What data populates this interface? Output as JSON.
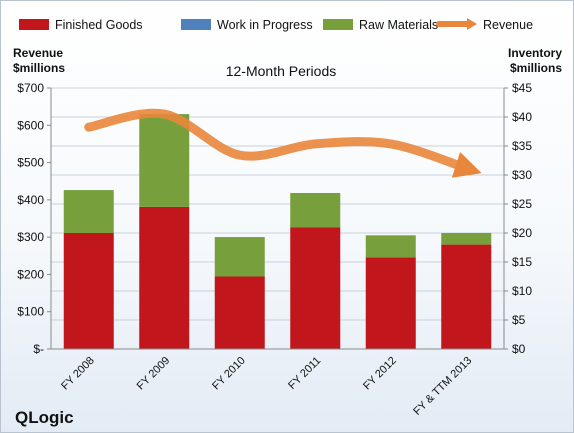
{
  "chart_data": {
    "type": "bar",
    "title": "12-Month Periods",
    "company": "QLogic",
    "left_axis_title": [
      "Revenue",
      "$millions"
    ],
    "right_axis_title": [
      "Inventory",
      "$millions"
    ],
    "categories": [
      "FY 2008",
      "FY 2009",
      "FY 2010",
      "FY 2011",
      "FY 2012",
      "FY & TTM 2013"
    ],
    "left_ticks": [
      "$-",
      "$100",
      "$200",
      "$300",
      "$400",
      "$500",
      "$600",
      "$700"
    ],
    "right_ticks": [
      "$0",
      "$5",
      "$10",
      "$15",
      "$20",
      "$25",
      "$30",
      "$35",
      "$40",
      "$45"
    ],
    "left_ylim": [
      0,
      700
    ],
    "right_ylim": [
      0,
      45
    ],
    "stacked": true,
    "legend_position": "top",
    "series": [
      {
        "name": "Finished Goods",
        "axis": "right",
        "type": "bar",
        "color": "#c0161c",
        "values": [
          20.0,
          24.5,
          12.5,
          21.0,
          15.8,
          18.0
        ]
      },
      {
        "name": "Work in Progress",
        "axis": "right",
        "type": "bar",
        "color": "#4f81bd",
        "values": [
          0.0,
          0.0,
          0.0,
          0.0,
          0.0,
          0.0
        ]
      },
      {
        "name": "Raw Materials",
        "axis": "right",
        "type": "bar",
        "color": "#77a03c",
        "values": [
          7.4,
          16.0,
          6.8,
          5.9,
          3.8,
          2.0
        ]
      },
      {
        "name": "Revenue",
        "axis": "left",
        "type": "line",
        "color": "#e8863b",
        "values": [
          595,
          630,
          520,
          550,
          550,
          485
        ]
      }
    ]
  }
}
